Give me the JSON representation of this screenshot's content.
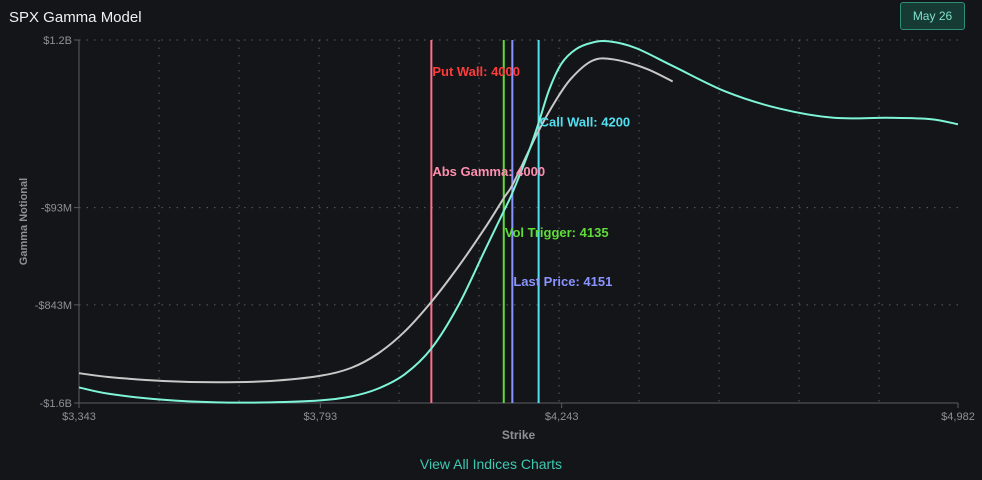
{
  "header": {
    "title": "SPX Gamma Model",
    "date_button": "May 26"
  },
  "footer": {
    "link_label": "View All Indices Charts"
  },
  "colors": {
    "background": "#141518",
    "grid": "#5a5d63",
    "axis_text": "#8d9097",
    "series_teal": "#7ef5d8",
    "series_gray": "#c8c8c8",
    "put_wall": "#ff6f8a",
    "put_wall_label": "#ff3b3b",
    "abs_gamma": "#ff8fb0",
    "vol_trigger": "#5edc3a",
    "last_price": "#8a94ff",
    "call_wall": "#52e0f0"
  },
  "chart_data": {
    "type": "line",
    "title": "SPX Gamma Model",
    "xlabel": "Strike",
    "ylabel": "Gamma Notional",
    "x_tick_labels": [
      "$3,343",
      "$3,793",
      "$4,243",
      "$4,982"
    ],
    "y_tick_labels": [
      "$1.2B",
      "-$93M",
      "-$843M",
      "-$1.6B"
    ],
    "y_ticks_values": [
      1.2,
      -0.093,
      -0.843,
      -1.6
    ],
    "xlim": [
      3343,
      4982
    ],
    "ylim": [
      -1.6,
      1.2
    ],
    "grid": true,
    "series": [
      {
        "color_key": "series_teal",
        "points": [
          [
            3343,
            -1.48
          ],
          [
            3400,
            -1.53
          ],
          [
            3500,
            -1.575
          ],
          [
            3600,
            -1.595
          ],
          [
            3700,
            -1.595
          ],
          [
            3793,
            -1.58
          ],
          [
            3850,
            -1.55
          ],
          [
            3900,
            -1.49
          ],
          [
            3950,
            -1.38
          ],
          [
            4000,
            -1.18
          ],
          [
            4050,
            -0.85
          ],
          [
            4100,
            -0.42
          ],
          [
            4135,
            -0.12
          ],
          [
            4151,
            0.02
          ],
          [
            4180,
            0.32
          ],
          [
            4200,
            0.56
          ],
          [
            4220,
            0.82
          ],
          [
            4243,
            1.02
          ],
          [
            4270,
            1.13
          ],
          [
            4300,
            1.18
          ],
          [
            4330,
            1.19
          ],
          [
            4380,
            1.14
          ],
          [
            4450,
            1.0
          ],
          [
            4550,
            0.8
          ],
          [
            4650,
            0.67
          ],
          [
            4750,
            0.6
          ],
          [
            4850,
            0.6
          ],
          [
            4930,
            0.59
          ],
          [
            4982,
            0.55
          ]
        ]
      },
      {
        "color_key": "series_gray",
        "points": [
          [
            3343,
            -1.37
          ],
          [
            3400,
            -1.4
          ],
          [
            3500,
            -1.43
          ],
          [
            3600,
            -1.44
          ],
          [
            3700,
            -1.43
          ],
          [
            3793,
            -1.39
          ],
          [
            3850,
            -1.33
          ],
          [
            3900,
            -1.22
          ],
          [
            3950,
            -1.05
          ],
          [
            4000,
            -0.82
          ],
          [
            4050,
            -0.55
          ],
          [
            4100,
            -0.25
          ],
          [
            4135,
            -0.02
          ],
          [
            4151,
            0.08
          ],
          [
            4180,
            0.33
          ],
          [
            4200,
            0.5
          ],
          [
            4230,
            0.72
          ],
          [
            4260,
            0.9
          ],
          [
            4300,
            1.04
          ],
          [
            4340,
            1.05
          ],
          [
            4400,
            0.98
          ],
          [
            4450,
            0.88
          ]
        ]
      }
    ],
    "markers": [
      {
        "x": 4000,
        "label": "Put Wall: 4000",
        "line_color_key": "put_wall",
        "label_color_key": "put_wall_label",
        "label_y": 0.96
      },
      {
        "x": 4000,
        "label": "Abs Gamma: 4000",
        "line_color_key": "abs_gamma",
        "label_color_key": "abs_gamma",
        "label_y": 0.19
      },
      {
        "x": 4135,
        "label": "Vol Trigger: 4135",
        "line_color_key": "vol_trigger",
        "label_color_key": "vol_trigger",
        "label_y": -0.28
      },
      {
        "x": 4151,
        "label": "Last Price: 4151",
        "line_color_key": "last_price",
        "label_color_key": "last_price",
        "label_y": -0.66
      },
      {
        "x": 4200,
        "label": "Call Wall: 4200",
        "line_color_key": "call_wall",
        "label_color_key": "call_wall",
        "label_y": 0.57
      }
    ]
  }
}
